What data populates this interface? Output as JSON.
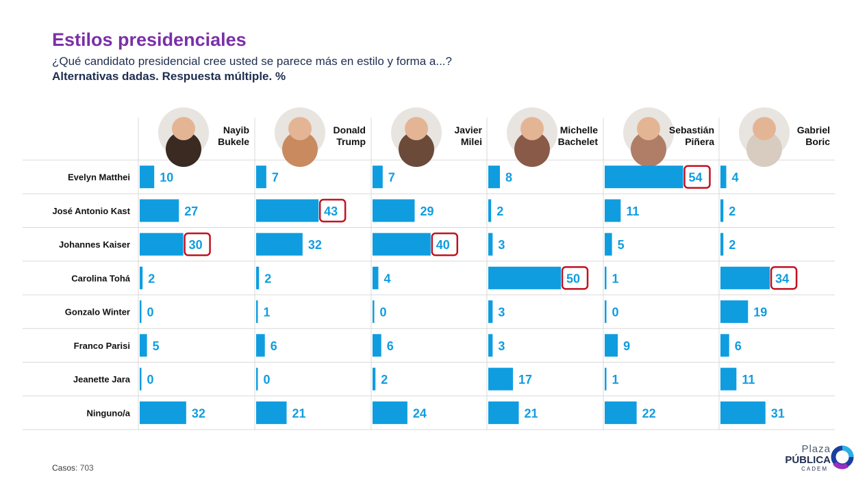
{
  "header": {
    "title": "Estilos presidenciales",
    "subtitle": "¿Qué candidato presidencial cree usted se parece más en estilo y forma a...?",
    "note": "Alternativas dadas. Respuesta múltiple. %"
  },
  "footer": {
    "cases_label": "Casos",
    "cases_value": ": 703"
  },
  "logo": {
    "line1": "Plaza",
    "line2": "PÚBLICA",
    "line3": "CADEM"
  },
  "colors": {
    "bar": "#0f9de0",
    "title": "#7b2fa8",
    "highlight": "#c0121f",
    "text_dark": "#1f2d50"
  },
  "chart_data": {
    "type": "bar",
    "orientation": "horizontal",
    "grid_layout": "small-multiples",
    "rows": [
      "Evelyn Matthei",
      "José Antonio Kast",
      "Johannes Kaiser",
      "Carolina Tohá",
      "Gonzalo Winter",
      "Franco Parisi",
      "Jeanette Jara",
      "Ninguno/a"
    ],
    "series": [
      {
        "name": "Nayib Bukele",
        "name_lines": [
          "Nayib",
          "Bukele"
        ],
        "photo_icon": "bukele-portrait-icon",
        "values": [
          10,
          27,
          30,
          2,
          0,
          5,
          0,
          32
        ],
        "highlight_row": 2
      },
      {
        "name": "Donald Trump",
        "name_lines": [
          "Donald",
          "Trump"
        ],
        "photo_icon": "trump-portrait-icon",
        "values": [
          7,
          43,
          32,
          2,
          1,
          6,
          0,
          21
        ],
        "highlight_row": 1
      },
      {
        "name": "Javier Milei",
        "name_lines": [
          "Javier",
          "Milei"
        ],
        "photo_icon": "milei-portrait-icon",
        "values": [
          7,
          29,
          40,
          4,
          0,
          6,
          2,
          24
        ],
        "highlight_row": 2
      },
      {
        "name": "Michelle Bachelet",
        "name_lines": [
          "Michelle",
          "Bachelet"
        ],
        "photo_icon": "bachelet-portrait-icon",
        "values": [
          8,
          2,
          3,
          50,
          3,
          3,
          17,
          21
        ],
        "highlight_row": 3
      },
      {
        "name": "Sebastián Piñera",
        "name_lines": [
          "Sebastián",
          "Piñera"
        ],
        "photo_icon": "pinera-portrait-icon",
        "values": [
          54,
          11,
          5,
          1,
          0,
          9,
          1,
          22
        ],
        "highlight_row": 0
      },
      {
        "name": "Gabriel Boric",
        "name_lines": [
          "Gabriel",
          "Boric"
        ],
        "photo_icon": "boric-portrait-icon",
        "values": [
          4,
          2,
          2,
          34,
          19,
          6,
          11,
          31
        ],
        "highlight_row": 3
      }
    ],
    "unit": "%",
    "grid": true,
    "legend": "none"
  }
}
